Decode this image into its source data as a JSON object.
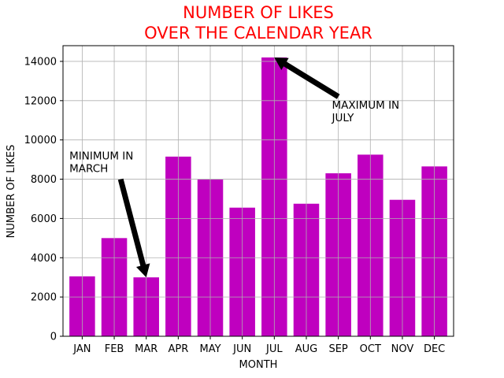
{
  "chart_data": {
    "type": "bar",
    "title_line1": "NUMBER OF LIKES",
    "title_line2": "OVER THE CALENDAR YEAR",
    "title_color": "#ff0000",
    "xlabel": "MONTH",
    "ylabel": "NUMBER OF LIKES",
    "categories": [
      "JAN",
      "FEB",
      "MAR",
      "APR",
      "MAY",
      "JUN",
      "JUL",
      "AUG",
      "SEP",
      "OCT",
      "NOV",
      "DEC"
    ],
    "values": [
      3050,
      5000,
      3000,
      9150,
      8000,
      6550,
      14200,
      6750,
      8300,
      9250,
      6950,
      8650
    ],
    "bar_color": "#bf00bf",
    "ylim": [
      0,
      14800
    ],
    "yticks": [
      0,
      2000,
      4000,
      6000,
      8000,
      10000,
      12000,
      14000
    ],
    "ytick_labels": [
      "0",
      "2000",
      "4000",
      "6000",
      "8000",
      "10000",
      "12000",
      "14000"
    ],
    "grid": true,
    "annotations": [
      {
        "line1": "MINIMUM IN",
        "line2": "MARCH",
        "category": "MAR",
        "value": 3000,
        "text_x": 1.2,
        "text_y": 8000
      },
      {
        "line1": "MAXIMUM IN",
        "line2": "JULY",
        "category": "JUL",
        "value": 14200,
        "text_x": 8.0,
        "text_y": 12200
      }
    ]
  }
}
